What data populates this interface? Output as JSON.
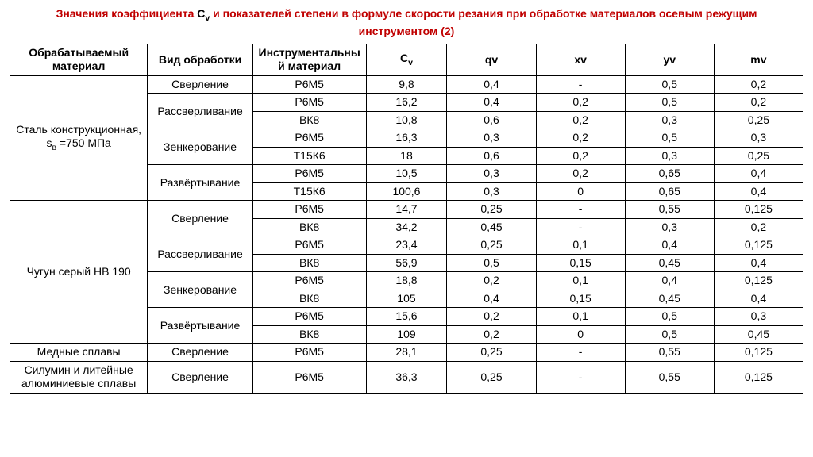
{
  "title": {
    "before_cv": "Значения коэффициента ",
    "cv_main": "C",
    "cv_sub": "v",
    "after_cv": " и показателей степени в формуле скорости резания при обработке материалов осевым режущим инструментом (2)",
    "color_red": "#c00000",
    "font_size_pt": 14
  },
  "headers": {
    "material": "Обрабатываемый материал",
    "process": "Вид обработки",
    "tool": "Инструментальный материал",
    "cv_main": "C",
    "cv_sub": "v",
    "qv": "qv",
    "xv": "xv",
    "yv": "yv",
    "mv": "mv"
  },
  "materials": [
    {
      "name": "Сталь конструкционная, s",
      "name_sub": "в",
      "name_after": " =750 МПа",
      "rows": [
        {
          "process": "Сверление",
          "tool": "Р6М5",
          "cv": "9,8",
          "qv": "0,4",
          "xv": "-",
          "yv": "0,5",
          "mv": "0,2"
        },
        {
          "process": "Рассверливание",
          "tool": "Р6М5",
          "cv": "16,2",
          "qv": "0,4",
          "xv": "0,2",
          "yv": "0,5",
          "mv": "0,2"
        },
        {
          "process": "",
          "tool": "ВК8",
          "cv": "10,8",
          "qv": "0,6",
          "xv": "0,2",
          "yv": "0,3",
          "mv": "0,25"
        },
        {
          "process": "Зенкерование",
          "tool": "Р6М5",
          "cv": "16,3",
          "qv": "0,3",
          "xv": "0,2",
          "yv": "0,5",
          "mv": "0,3"
        },
        {
          "process": "",
          "tool": "Т15К6",
          "cv": "18",
          "qv": "0,6",
          "xv": "0,2",
          "yv": "0,3",
          "mv": "0,25"
        },
        {
          "process": "Развёртывание",
          "tool": "Р6М5",
          "cv": "10,5",
          "qv": "0,3",
          "xv": "0,2",
          "yv": "0,65",
          "mv": "0,4"
        },
        {
          "process": "",
          "tool": "Т15К6",
          "cv": "100,6",
          "qv": "0,3",
          "xv": "0",
          "yv": "0,65",
          "mv": "0,4"
        }
      ],
      "process_spans": [
        1,
        2,
        2,
        2
      ]
    },
    {
      "name": "Чугун серый НВ 190",
      "rows": [
        {
          "process": "Сверление",
          "tool": "Р6М5",
          "cv": "14,7",
          "qv": "0,25",
          "xv": "-",
          "yv": "0,55",
          "mv": "0,125"
        },
        {
          "process": "",
          "tool": "ВК8",
          "cv": "34,2",
          "qv": "0,45",
          "xv": "-",
          "yv": "0,3",
          "mv": "0,2"
        },
        {
          "process": "Рассверливание",
          "tool": "Р6М5",
          "cv": "23,4",
          "qv": "0,25",
          "xv": "0,1",
          "yv": "0,4",
          "mv": "0,125"
        },
        {
          "process": "",
          "tool": "ВК8",
          "cv": "56,9",
          "qv": "0,5",
          "xv": "0,15",
          "yv": "0,45",
          "mv": "0,4"
        },
        {
          "process": "Зенкерование",
          "tool": "Р6М5",
          "cv": "18,8",
          "qv": "0,2",
          "xv": "0,1",
          "yv": "0,4",
          "mv": "0,125"
        },
        {
          "process": "",
          "tool": "ВК8",
          "cv": "105",
          "qv": "0,4",
          "xv": "0,15",
          "yv": "0,45",
          "mv": "0,4"
        },
        {
          "process": "Развёртывание",
          "tool": "Р6М5",
          "cv": "15,6",
          "qv": "0,2",
          "xv": "0,1",
          "yv": "0,5",
          "mv": "0,3"
        },
        {
          "process": "",
          "tool": "ВК8",
          "cv": "109",
          "qv": "0,2",
          "xv": "0",
          "yv": "0,5",
          "mv": "0,45"
        }
      ],
      "process_spans": [
        2,
        2,
        2,
        2
      ]
    },
    {
      "name": "Медные сплавы",
      "rows": [
        {
          "process": "Сверление",
          "tool": "Р6М5",
          "cv": "28,1",
          "qv": "0,25",
          "xv": "-",
          "yv": "0,55",
          "mv": "0,125"
        }
      ],
      "process_spans": [
        1
      ]
    },
    {
      "name": "Силумин и литейные алюминиевые сплавы",
      "rows": [
        {
          "process": "Сверление",
          "tool": "Р6М5",
          "cv": "36,3",
          "qv": "0,25",
          "xv": "-",
          "yv": "0,55",
          "mv": "0,125"
        }
      ],
      "process_spans": [
        1
      ]
    }
  ]
}
